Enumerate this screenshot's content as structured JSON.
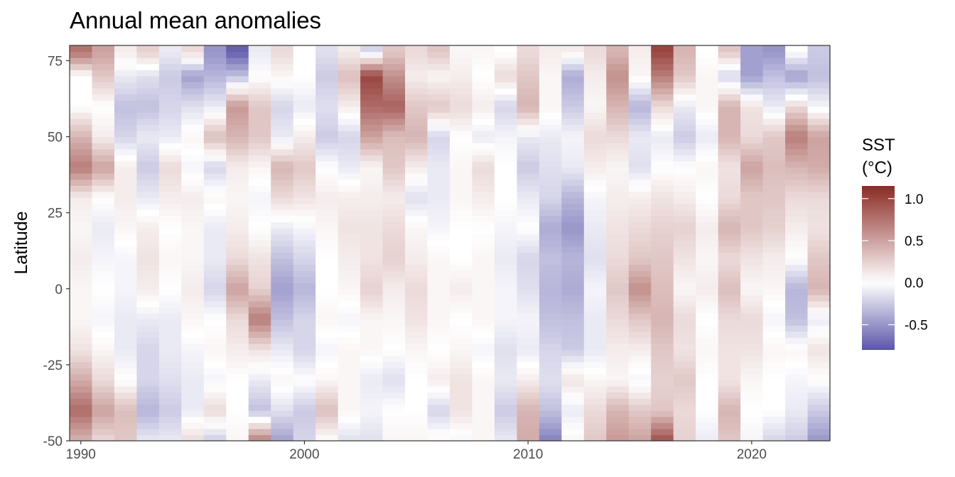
{
  "chart_data": {
    "type": "heatmap",
    "title": "Annual mean anomalies",
    "xlabel": "",
    "ylabel": "Latitude",
    "x_start": 1990,
    "x_end": 2023,
    "xlim": [
      1989.5,
      2023.5
    ],
    "ylim": [
      -50,
      80
    ],
    "x_ticks": [
      1990,
      2000,
      2010,
      2020
    ],
    "y_ticks": [
      -50,
      -25,
      0,
      25,
      50,
      75
    ],
    "x_tick_labels": [
      "1990",
      "2000",
      "2010",
      "2020"
    ],
    "y_tick_labels": [
      "-50",
      "-25",
      "0",
      "25",
      "50",
      "75"
    ],
    "lat_knots": [
      -50,
      -40,
      -30,
      -20,
      -10,
      0,
      10,
      20,
      30,
      40,
      50,
      60,
      70,
      78
    ],
    "anomalies": [
      [
        0.4,
        0.8,
        0.45,
        0.15,
        0.05,
        0.05,
        0.1,
        0.05,
        0.1,
        0.7,
        0.4,
        0.0,
        0.0,
        0.75
      ],
      [
        0.2,
        0.5,
        0.2,
        0.05,
        -0.05,
        0.0,
        -0.05,
        -0.1,
        0.0,
        0.5,
        0.1,
        0.0,
        0.3,
        0.5
      ],
      [
        0.3,
        0.35,
        0.0,
        -0.1,
        -0.1,
        -0.05,
        -0.05,
        0.05,
        0.1,
        0.1,
        -0.2,
        -0.3,
        -0.1,
        0.1
      ],
      [
        -0.1,
        -0.35,
        -0.2,
        -0.2,
        -0.1,
        0.1,
        0.15,
        0.1,
        -0.1,
        -0.25,
        -0.1,
        -0.3,
        -0.15,
        0.25
      ],
      [
        -0.1,
        -0.25,
        -0.15,
        -0.1,
        -0.1,
        0.0,
        0.05,
        0.0,
        0.1,
        0.2,
        -0.1,
        -0.2,
        -0.25,
        -0.1
      ],
      [
        0.2,
        -0.1,
        -0.1,
        -0.05,
        0.05,
        0.1,
        0.05,
        0.05,
        0.1,
        -0.05,
        0.05,
        -0.15,
        -0.45,
        0.2
      ],
      [
        -0.25,
        0.2,
        -0.05,
        0.05,
        0.0,
        -0.2,
        -0.1,
        -0.1,
        0.05,
        -0.2,
        0.35,
        -0.1,
        -0.35,
        -0.5
      ],
      [
        0.05,
        0.0,
        0.0,
        0.1,
        0.2,
        0.5,
        0.2,
        0.1,
        0.05,
        0.1,
        0.4,
        0.55,
        -0.3,
        -0.75
      ],
      [
        0.7,
        -0.3,
        -0.1,
        0.15,
        0.7,
        0.25,
        0.15,
        0.0,
        -0.05,
        0.05,
        0.3,
        0.3,
        0.0,
        -0.1
      ],
      [
        -0.45,
        -0.15,
        0.05,
        -0.1,
        -0.3,
        -0.45,
        -0.3,
        -0.1,
        0.2,
        0.4,
        -0.1,
        -0.2,
        0.05,
        0.2
      ],
      [
        -0.2,
        -0.25,
        0.0,
        -0.2,
        -0.2,
        -0.35,
        -0.2,
        -0.05,
        0.15,
        0.3,
        0.1,
        -0.1,
        0.0,
        0.0
      ],
      [
        0.0,
        0.35,
        0.05,
        -0.05,
        0.05,
        0.0,
        0.0,
        0.05,
        0.1,
        0.0,
        -0.25,
        -0.15,
        -0.25,
        -0.15
      ],
      [
        -0.15,
        0.05,
        0.05,
        0.05,
        -0.05,
        0.05,
        0.1,
        0.15,
        0.1,
        -0.1,
        -0.2,
        0.1,
        0.35,
        0.1
      ],
      [
        -0.15,
        -0.05,
        -0.1,
        0.05,
        0.05,
        0.25,
        0.15,
        0.15,
        0.1,
        0.05,
        0.5,
        0.8,
        1.0,
        -0.2
      ],
      [
        0.05,
        0.0,
        -0.15,
        0.0,
        0.05,
        0.1,
        0.25,
        0.2,
        0.1,
        0.3,
        0.35,
        0.85,
        0.6,
        0.3
      ],
      [
        0.05,
        0.0,
        0.0,
        0.05,
        0.15,
        0.2,
        0.1,
        0.05,
        -0.15,
        0.1,
        0.4,
        0.3,
        0.1,
        0.2
      ],
      [
        0.05,
        -0.2,
        0.1,
        0.0,
        0.05,
        0.05,
        0.05,
        -0.05,
        -0.1,
        -0.1,
        -0.2,
        0.3,
        0.05,
        0.3
      ],
      [
        -0.05,
        0.15,
        0.15,
        0.05,
        0.0,
        0.1,
        0.0,
        0.0,
        0.05,
        0.05,
        0.0,
        0.2,
        0.1,
        0.05
      ],
      [
        0.05,
        0.05,
        0.05,
        -0.05,
        0.05,
        0.05,
        0.05,
        0.0,
        0.1,
        0.2,
        -0.1,
        0.1,
        0.0,
        0.05
      ],
      [
        -0.1,
        -0.25,
        -0.1,
        -0.15,
        -0.05,
        -0.05,
        -0.1,
        -0.05,
        0.0,
        0.0,
        -0.05,
        -0.2,
        0.2,
        0.0
      ],
      [
        0.45,
        0.4,
        0.1,
        -0.1,
        -0.05,
        -0.15,
        -0.2,
        0.0,
        -0.1,
        -0.25,
        -0.1,
        0.4,
        0.3,
        0.2
      ],
      [
        -0.6,
        -0.3,
        -0.15,
        -0.2,
        -0.3,
        -0.35,
        -0.3,
        -0.4,
        -0.2,
        -0.15,
        -0.1,
        0.05,
        0.05,
        0.1
      ],
      [
        0.05,
        -0.1,
        0.15,
        -0.25,
        -0.3,
        -0.4,
        -0.35,
        -0.5,
        -0.35,
        -0.1,
        -0.05,
        -0.25,
        -0.4,
        0.1
      ],
      [
        0.3,
        0.2,
        0.05,
        -0.1,
        -0.1,
        -0.05,
        -0.15,
        -0.1,
        -0.05,
        0.1,
        0.2,
        0.05,
        0.1,
        0.2
      ],
      [
        0.55,
        0.4,
        0.05,
        0.1,
        0.2,
        0.3,
        0.2,
        0.15,
        0.1,
        0.05,
        0.2,
        0.4,
        0.6,
        0.4
      ],
      [
        0.5,
        0.3,
        -0.05,
        0.1,
        0.3,
        0.6,
        0.3,
        0.2,
        0.1,
        -0.15,
        -0.1,
        -0.35,
        0.05,
        0.1
      ],
      [
        0.95,
        0.3,
        0.25,
        0.3,
        0.4,
        0.35,
        0.3,
        0.25,
        0.15,
        0.0,
        -0.1,
        0.2,
        0.7,
        1.0
      ],
      [
        0.25,
        0.2,
        0.3,
        0.15,
        0.2,
        0.05,
        0.15,
        0.25,
        0.1,
        0.0,
        -0.25,
        -0.1,
        0.3,
        0.4
      ],
      [
        -0.1,
        0.0,
        0.0,
        0.05,
        0.0,
        0.1,
        0.05,
        0.1,
        0.0,
        0.05,
        -0.1,
        0.05,
        0.05,
        0.0
      ],
      [
        0.3,
        0.4,
        0.15,
        0.15,
        0.2,
        0.35,
        0.2,
        0.4,
        0.2,
        0.15,
        0.4,
        0.4,
        -0.2,
        0.3
      ],
      [
        -0.05,
        0.0,
        0.05,
        0.15,
        0.2,
        0.05,
        0.15,
        0.3,
        0.3,
        0.5,
        0.2,
        0.15,
        -0.45,
        -0.45
      ],
      [
        -0.2,
        0.0,
        0.0,
        0.05,
        -0.05,
        0.05,
        0.1,
        0.25,
        0.3,
        0.35,
        0.3,
        -0.1,
        -0.3,
        -0.5
      ],
      [
        -0.25,
        -0.1,
        -0.05,
        0.05,
        -0.3,
        -0.35,
        0.0,
        0.1,
        0.2,
        0.4,
        0.7,
        0.2,
        -0.45,
        0.0
      ],
      [
        -0.5,
        -0.25,
        0.0,
        0.15,
        -0.1,
        0.4,
        0.3,
        0.15,
        0.2,
        0.45,
        0.5,
        -0.05,
        -0.3,
        -0.25
      ]
    ],
    "legend": {
      "title": "SST\n(°C)",
      "labels": [
        "1.0",
        "0.5",
        "0.0",
        "-0.5"
      ],
      "values": [
        1.0,
        0.5,
        0.0,
        -0.5
      ],
      "min": -0.8,
      "max": 1.15,
      "placement": "right"
    },
    "colors": {
      "negative": "#5a56a8",
      "zero": "#ffffff",
      "positive": "#8a2a24"
    },
    "grid": false
  }
}
